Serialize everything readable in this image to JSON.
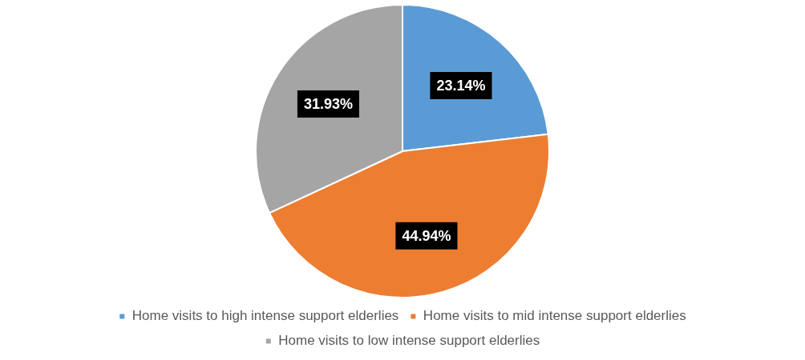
{
  "chart_data": {
    "type": "pie",
    "categories": [
      "Home visits to high intense support elderlies",
      "Home visits to mid intense support elderlies",
      "Home visits to low intense support elderlies"
    ],
    "values": [
      23.14,
      44.94,
      31.93
    ],
    "colors": [
      "#5b9bd5",
      "#ed7d31",
      "#a5a5a5"
    ],
    "value_labels": [
      "23.14%",
      "44.94%",
      "31.93%"
    ],
    "legend": "bottom"
  }
}
